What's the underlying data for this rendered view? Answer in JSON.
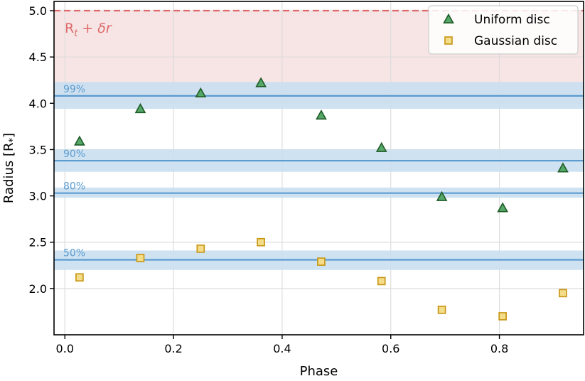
{
  "chart_data": {
    "type": "scatter",
    "xlabel": "Phase",
    "ylabel": "Radius [R",
    "ylabel_sub": "*",
    "ylabel_close": "]",
    "xlim": [
      -0.02,
      0.955
    ],
    "ylim": [
      1.5,
      5.1
    ],
    "x_ticks": [
      0.0,
      0.2,
      0.4,
      0.6,
      0.8
    ],
    "x_tick_labels": [
      "0.0",
      "0.2",
      "0.4",
      "0.6",
      "0.8"
    ],
    "y_ticks": [
      2.0,
      2.5,
      3.0,
      3.5,
      4.0,
      4.5,
      5.0
    ],
    "y_tick_labels": [
      "2.0",
      "2.5",
      "3.0",
      "3.5",
      "4.0",
      "4.5",
      "5.0"
    ],
    "grid": true,
    "legend_position": "top-right",
    "series": [
      {
        "name": "Uniform disc",
        "marker": "triangle",
        "fill": "#55a868",
        "stroke": "#1e5a26",
        "x": [
          0.027,
          0.139,
          0.25,
          0.361,
          0.472,
          0.583,
          0.694,
          0.806,
          0.917
        ],
        "y": [
          3.59,
          3.94,
          4.11,
          4.22,
          3.87,
          3.52,
          2.99,
          2.87,
          3.3
        ]
      },
      {
        "name": "Gaussian disc",
        "marker": "square",
        "fill": "#f3dc8a",
        "stroke": "#c7940f",
        "x": [
          0.027,
          0.139,
          0.25,
          0.361,
          0.472,
          0.583,
          0.694,
          0.806,
          0.917
        ],
        "y": [
          2.12,
          2.33,
          2.43,
          2.5,
          2.29,
          2.08,
          1.77,
          1.7,
          1.95
        ]
      }
    ],
    "truncation_line": {
      "label_main": "R",
      "label_sub": "t",
      "label_rest": " + δr",
      "y": 5.0,
      "band_low": 4.0,
      "color": "#dd6b6b",
      "band_color": "#f7e4e4"
    },
    "percentile_bands": [
      {
        "label": "99%",
        "y": 4.08,
        "low": 3.94,
        "high": 4.23
      },
      {
        "label": "90%",
        "y": 3.38,
        "low": 3.26,
        "high": 3.5
      },
      {
        "label": "80%",
        "y": 3.03,
        "low": 2.98,
        "high": 3.09
      },
      {
        "label": "50%",
        "y": 2.31,
        "low": 2.2,
        "high": 2.41
      }
    ],
    "band_line_color": "#5b9bd0",
    "band_fill_color": "#c9dff0",
    "band_label_color": "#5b9bd0"
  }
}
